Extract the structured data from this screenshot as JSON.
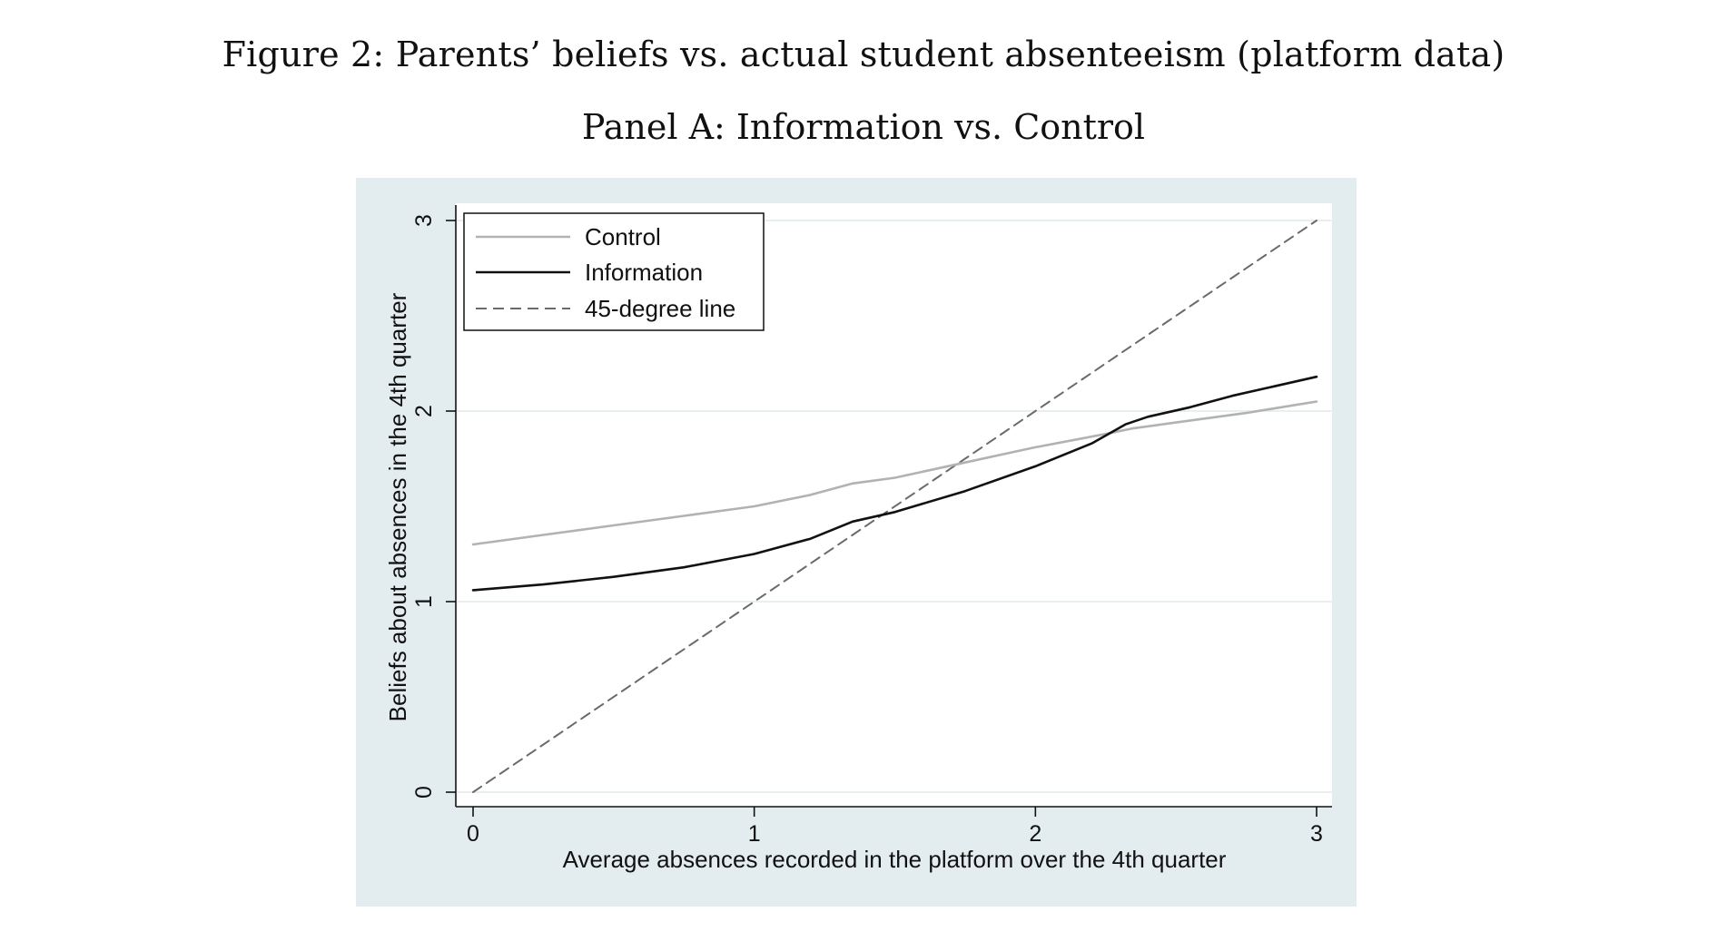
{
  "figure": {
    "title": "Figure 2: Parents’ beliefs vs. actual student absenteeism (platform data)",
    "panel_title": "Panel A: Information vs. Control"
  },
  "colors": {
    "background_outer": "#e3edf0",
    "plot_area": "#ffffff",
    "gridline": "#dfeaee",
    "control": "#b2b2b2",
    "information": "#111111",
    "forty_five": "#6a6a6a"
  },
  "chart_data": {
    "type": "line",
    "xlabel": "Average absences recorded in the platform over the 4th quarter",
    "ylabel": "Beliefs about absences in the 4th quarter",
    "xlim": [
      0,
      3
    ],
    "ylim": [
      0,
      3
    ],
    "xticks": [
      "0",
      "1",
      "2",
      "3"
    ],
    "yticks": [
      "0",
      "1",
      "2",
      "3"
    ],
    "grid": "horizontal",
    "legend_position": "top-left",
    "series": [
      {
        "name": "Control",
        "style": "solid",
        "x": [
          0,
          0.25,
          0.5,
          0.75,
          1.0,
          1.2,
          1.35,
          1.5,
          1.75,
          2.0,
          2.25,
          2.35,
          2.5,
          2.75,
          3.0
        ],
        "y": [
          1.3,
          1.35,
          1.4,
          1.45,
          1.5,
          1.56,
          1.62,
          1.65,
          1.73,
          1.81,
          1.88,
          1.91,
          1.94,
          1.99,
          2.05
        ]
      },
      {
        "name": "Information",
        "style": "solid",
        "x": [
          0,
          0.25,
          0.5,
          0.75,
          1.0,
          1.2,
          1.35,
          1.5,
          1.75,
          2.0,
          2.2,
          2.32,
          2.4,
          2.55,
          2.7,
          2.85,
          3.0
        ],
        "y": [
          1.06,
          1.09,
          1.13,
          1.18,
          1.25,
          1.33,
          1.42,
          1.47,
          1.58,
          1.71,
          1.83,
          1.93,
          1.97,
          2.02,
          2.08,
          2.13,
          2.18
        ]
      },
      {
        "name": "45-degree line",
        "style": "dashed",
        "x": [
          0,
          3
        ],
        "y": [
          0,
          3
        ]
      }
    ]
  }
}
